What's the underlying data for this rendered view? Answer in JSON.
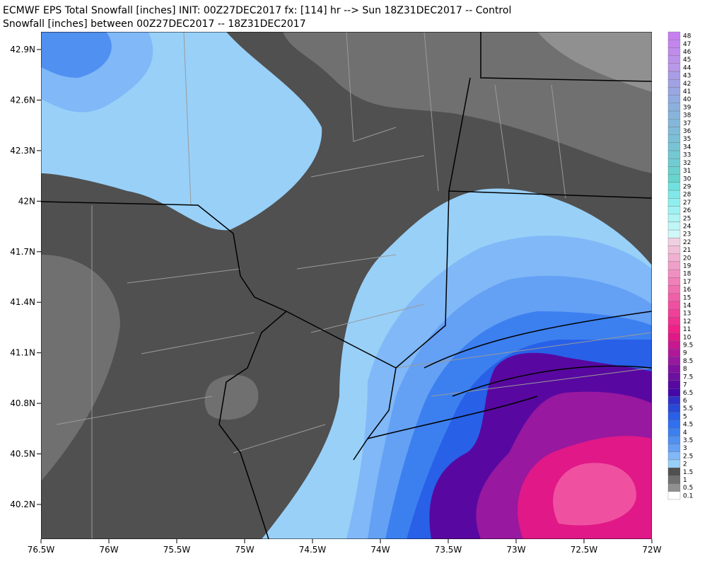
{
  "header": {
    "line1": "ECMWF EPS Total Snowfall [inches] INIT: 00Z27DEC2017 fx: [114] hr --> Sun 18Z31DEC2017 -- Control",
    "line2": "Snowfall [inches] between 00Z27DEC2017 -- 18Z31DEC2017"
  },
  "map": {
    "lat_labels": [
      "42.9N",
      "42.6N",
      "42.3N",
      "42N",
      "41.7N",
      "41.4N",
      "41.1N",
      "40.8N",
      "40.5N",
      "40.2N"
    ],
    "lon_labels": [
      "76.5W",
      "76W",
      "75.5W",
      "75W",
      "74.5W",
      "74W",
      "73.5W",
      "73W",
      "72.5W",
      "72W"
    ]
  },
  "colorbar": {
    "levels": [
      48,
      47,
      46,
      45,
      44,
      43,
      42,
      41,
      40,
      39,
      38,
      37,
      36,
      35,
      34,
      33,
      32,
      31,
      30,
      29,
      28,
      27,
      26,
      25,
      24,
      23,
      22,
      21,
      20,
      19,
      18,
      17,
      16,
      15,
      14,
      13,
      12,
      11,
      10,
      9.5,
      9,
      8.5,
      8,
      7.5,
      7,
      6.5,
      6,
      5.5,
      5,
      4.5,
      4,
      3.5,
      3,
      2.5,
      2,
      1.5,
      1,
      0.5,
      0.1
    ],
    "colors": [
      "#c77ff0",
      "#c386ee",
      "#bf8cec",
      "#bb92ea",
      "#b898e8",
      "#a89de6",
      "#a0a2e4",
      "#98a7e2",
      "#90ace0",
      "#8cb0de",
      "#88b4dc",
      "#84b8da",
      "#80bcd8",
      "#7cc0d6",
      "#78c4d4",
      "#74c8d2",
      "#70ccd0",
      "#6cd0ce",
      "#68d4cc",
      "#70e0e0",
      "#80e8e8",
      "#90eeee",
      "#a0f2f2",
      "#b0f4f4",
      "#c0f6f6",
      "#d0f8f8",
      "#f0d0e0",
      "#f0c0d8",
      "#f0b0d0",
      "#f0a0c8",
      "#f090c0",
      "#f080b8",
      "#f070b0",
      "#f060a8",
      "#f050a0",
      "#f04098",
      "#f03090",
      "#f02088",
      "#e01888",
      "#c81890",
      "#b01898",
      "#9818a0",
      "#8010a0",
      "#6c10a0",
      "#5808a0",
      "#4408a8",
      "#3030c8",
      "#2848d8",
      "#2860e8",
      "#3070f0",
      "#3c80f0",
      "#5090f0",
      "#64a0f4",
      "#80b8f8",
      "#98d0f8",
      "#505050",
      "#707070",
      "#909090",
      "#ffffff"
    ]
  }
}
